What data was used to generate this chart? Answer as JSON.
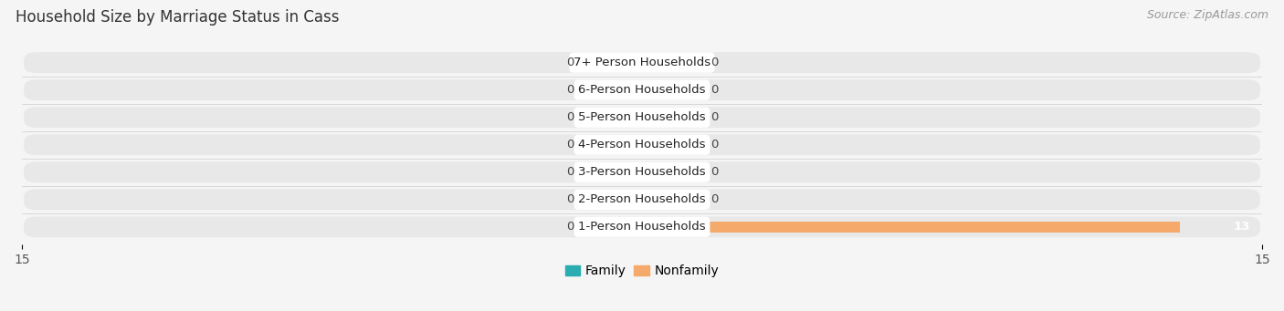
{
  "title": "Household Size by Marriage Status in Cass",
  "source": "Source: ZipAtlas.com",
  "categories": [
    "7+ Person Households",
    "6-Person Households",
    "5-Person Households",
    "4-Person Households",
    "3-Person Households",
    "2-Person Households",
    "1-Person Households"
  ],
  "family_values": [
    0,
    0,
    0,
    0,
    0,
    0,
    0
  ],
  "nonfamily_values": [
    0,
    0,
    0,
    0,
    0,
    0,
    13
  ],
  "family_color": "#2AACB0",
  "nonfamily_color": "#F5A96B",
  "nonfamily_color_bar": "#F5A96B",
  "xlim_left": -15,
  "xlim_right": 15,
  "stub_size": 1.5,
  "title_fontsize": 12,
  "label_fontsize": 9.5,
  "tick_fontsize": 10,
  "source_fontsize": 9,
  "row_facecolor": "#e8e8e8",
  "fig_facecolor": "#f5f5f5"
}
